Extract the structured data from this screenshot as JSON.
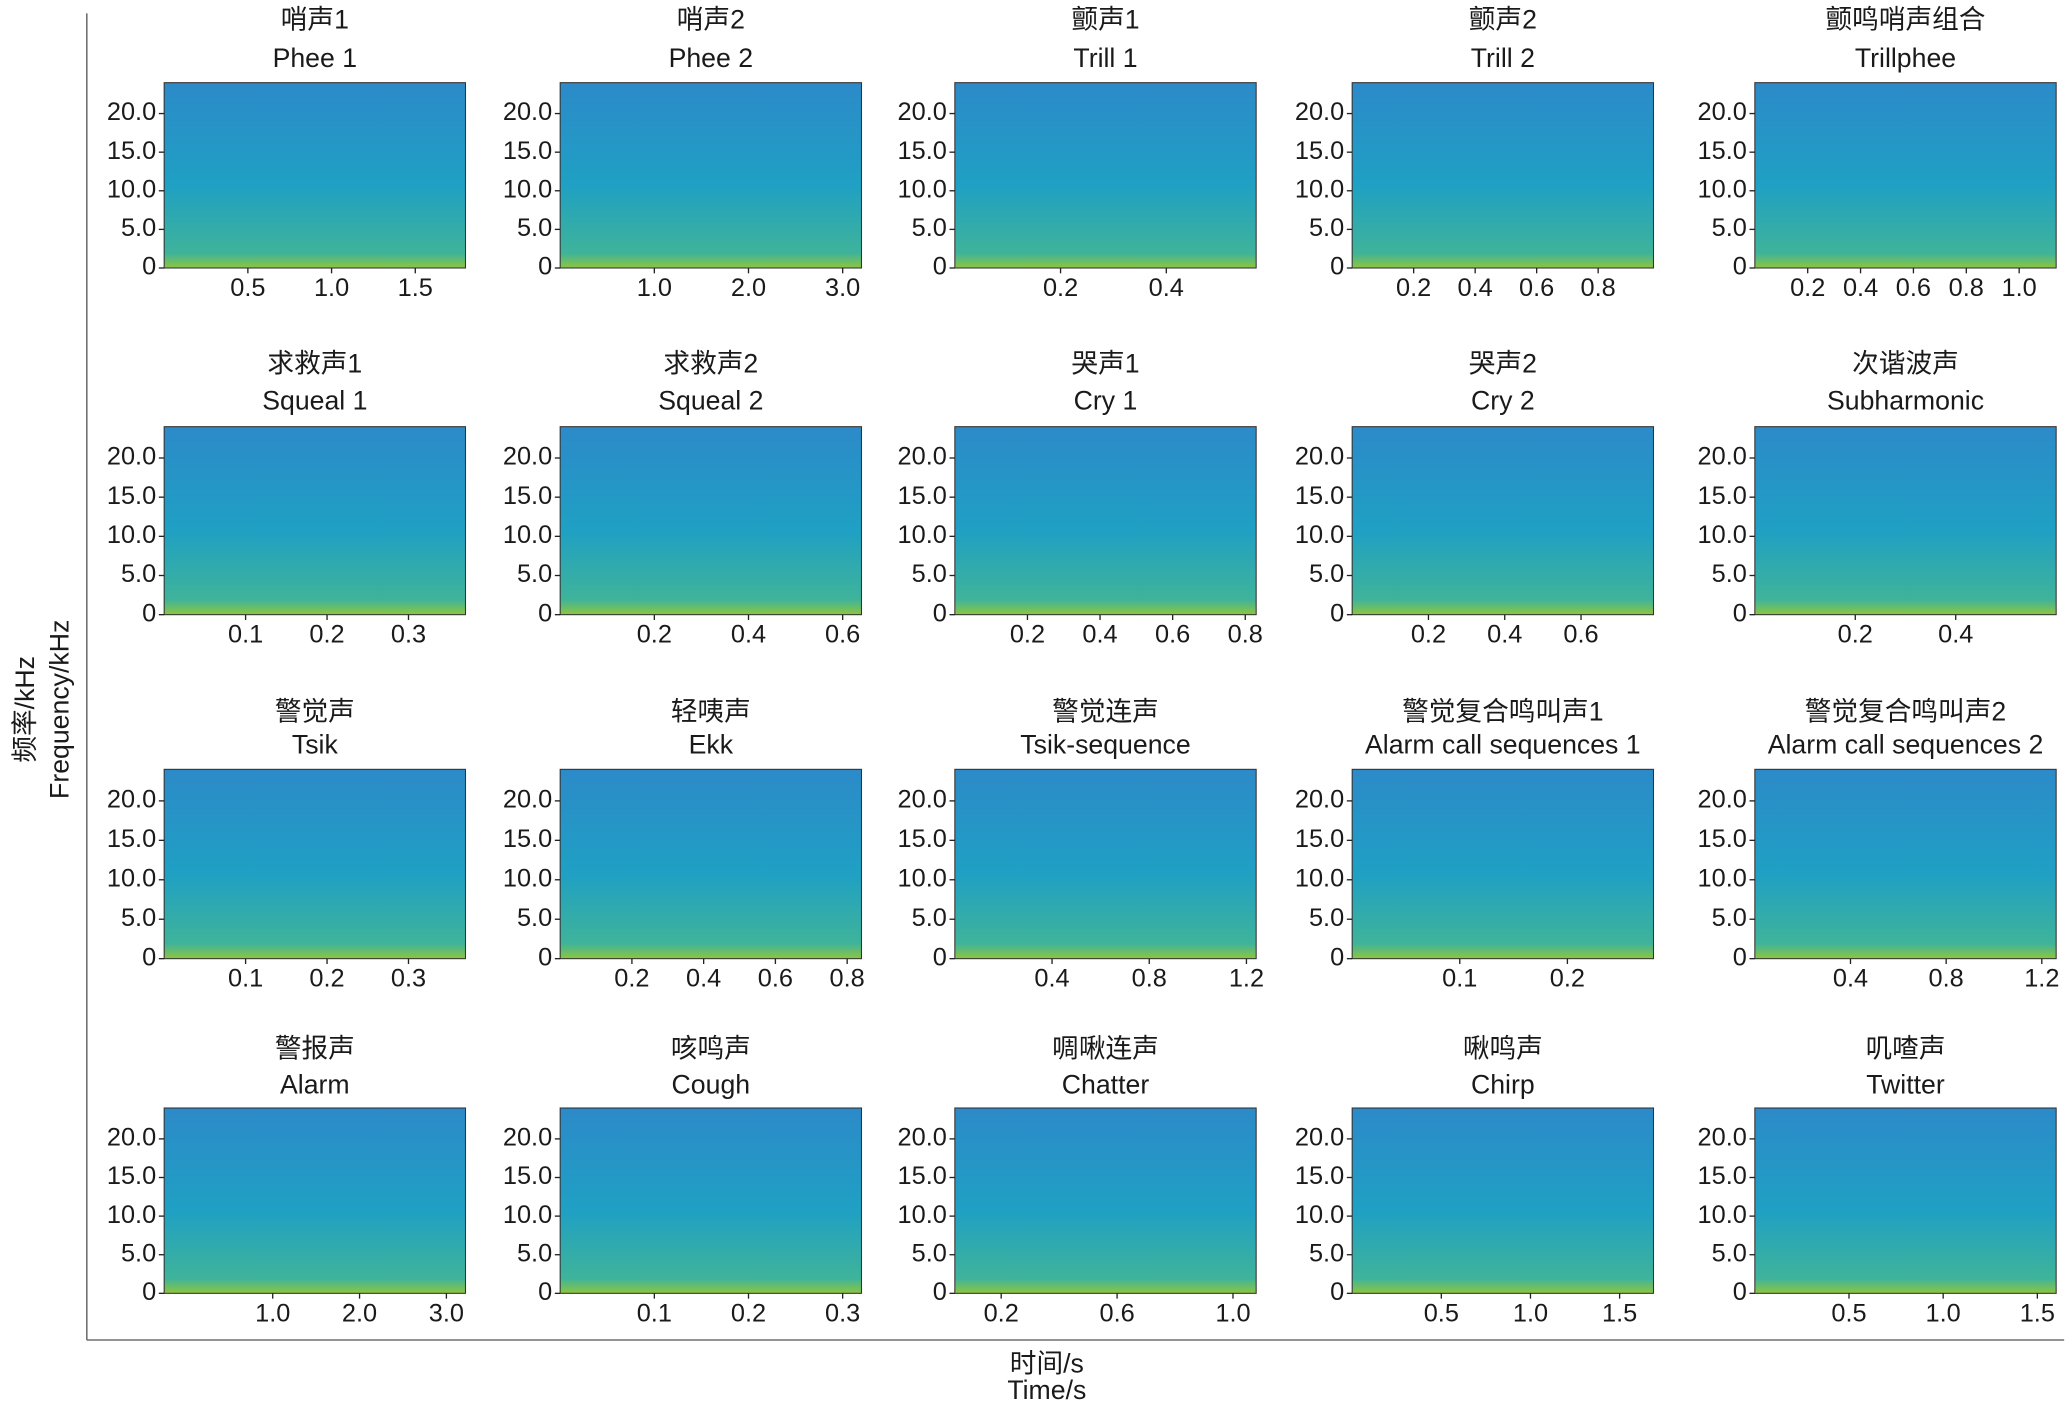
{
  "figure": {
    "xlabel": "时间/s",
    "xlabel_en": "Time/s",
    "ylabel": "频率/kHz",
    "ylabel_en": "Frequency/kHz"
  },
  "chart_data": [
    {
      "type": "spectrogram",
      "title": "哨声1",
      "subtitle": "Phee 1",
      "xlim": [
        0,
        1.8
      ],
      "xticks": [
        0.5,
        {
          "value": 1,
          "label": "1.0"
        },
        1.5
      ],
      "ylim": [
        0,
        24
      ],
      "yticks": [
        0,
        {
          "value": 5,
          "label": "5.0"
        },
        {
          "value": 10,
          "label": "10.0"
        },
        {
          "value": 15,
          "label": "15.0"
        },
        {
          "value": 20,
          "label": "20.0"
        }
      ]
    },
    {
      "type": "spectrogram",
      "title": "哨声2",
      "subtitle": "Phee 2",
      "xlim": [
        0,
        3.2
      ],
      "xticks": [
        {
          "value": 1,
          "label": "1.0"
        },
        {
          "value": 2,
          "label": "2.0"
        },
        {
          "value": 3,
          "label": "3.0"
        }
      ],
      "ylim": [
        0,
        24
      ],
      "yticks": [
        0,
        {
          "value": 5,
          "label": "5.0"
        },
        {
          "value": 10,
          "label": "10.0"
        },
        {
          "value": 15,
          "label": "15.0"
        },
        {
          "value": 20,
          "label": "20.0"
        }
      ]
    },
    {
      "type": "spectrogram",
      "title": "颤声1",
      "subtitle": "Trill 1",
      "xlim": [
        0,
        0.57
      ],
      "xticks": [
        0.2,
        0.4
      ],
      "ylim": [
        0,
        24
      ],
      "yticks": [
        0,
        {
          "value": 5,
          "label": "5.0"
        },
        {
          "value": 10,
          "label": "10.0"
        },
        {
          "value": 15,
          "label": "15.0"
        },
        {
          "value": 20,
          "label": "20.0"
        }
      ]
    },
    {
      "type": "spectrogram",
      "title": "颤声2",
      "subtitle": "Trill 2",
      "xlim": [
        0,
        0.98
      ],
      "xticks": [
        0.2,
        0.4,
        0.6,
        0.8
      ],
      "ylim": [
        0,
        24
      ],
      "yticks": [
        0,
        {
          "value": 5,
          "label": "5.0"
        },
        {
          "value": 10,
          "label": "10.0"
        },
        {
          "value": 15,
          "label": "15.0"
        },
        {
          "value": 20,
          "label": "20.0"
        }
      ]
    },
    {
      "type": "spectrogram",
      "title": "颤鸣哨声组合",
      "subtitle": "Trillphee",
      "xlim": [
        0,
        1.14
      ],
      "xticks": [
        0.2,
        0.4,
        0.6,
        0.8,
        {
          "value": 1,
          "label": "1.0"
        }
      ],
      "ylim": [
        0,
        24
      ],
      "yticks": [
        0,
        {
          "value": 5,
          "label": "5.0"
        },
        {
          "value": 10,
          "label": "10.0"
        },
        {
          "value": 15,
          "label": "15.0"
        },
        {
          "value": 20,
          "label": "20.0"
        }
      ]
    },
    {
      "type": "spectrogram",
      "title": "求救声1",
      "subtitle": "Squeal 1",
      "xlim": [
        0,
        0.37
      ],
      "xticks": [
        0.1,
        0.2,
        0.3
      ],
      "ylim": [
        0,
        24
      ],
      "yticks": [
        0,
        {
          "value": 5,
          "label": "5.0"
        },
        {
          "value": 10,
          "label": "10.0"
        },
        {
          "value": 15,
          "label": "15.0"
        },
        {
          "value": 20,
          "label": "20.0"
        }
      ]
    },
    {
      "type": "spectrogram",
      "title": "求救声2",
      "subtitle": "Squeal 2",
      "xlim": [
        0,
        0.64
      ],
      "xticks": [
        0.2,
        0.4,
        0.6
      ],
      "ylim": [
        0,
        24
      ],
      "yticks": [
        0,
        {
          "value": 5,
          "label": "5.0"
        },
        {
          "value": 10,
          "label": "10.0"
        },
        {
          "value": 15,
          "label": "15.0"
        },
        {
          "value": 20,
          "label": "20.0"
        }
      ]
    },
    {
      "type": "spectrogram",
      "title": "哭声1",
      "subtitle": "Cry 1",
      "xlim": [
        0,
        0.83
      ],
      "xticks": [
        0.2,
        0.4,
        0.6,
        0.8
      ],
      "ylim": [
        0,
        24
      ],
      "yticks": [
        0,
        {
          "value": 5,
          "label": "5.0"
        },
        {
          "value": 10,
          "label": "10.0"
        },
        {
          "value": 15,
          "label": "15.0"
        },
        {
          "value": 20,
          "label": "20.0"
        }
      ]
    },
    {
      "type": "spectrogram",
      "title": "哭声2",
      "subtitle": "Cry 2",
      "xlim": [
        0,
        0.79
      ],
      "xticks": [
        0.2,
        0.4,
        0.6
      ],
      "ylim": [
        0,
        24
      ],
      "yticks": [
        0,
        {
          "value": 5,
          "label": "5.0"
        },
        {
          "value": 10,
          "label": "10.0"
        },
        {
          "value": 15,
          "label": "15.0"
        },
        {
          "value": 20,
          "label": "20.0"
        }
      ]
    },
    {
      "type": "spectrogram",
      "title": "次谐波声",
      "subtitle": "Subharmonic",
      "xlim": [
        0,
        0.6
      ],
      "xticks": [
        0.2,
        0.4
      ],
      "ylim": [
        0,
        24
      ],
      "yticks": [
        0,
        {
          "value": 5,
          "label": "5.0"
        },
        {
          "value": 10,
          "label": "10.0"
        },
        {
          "value": 15,
          "label": "15.0"
        },
        {
          "value": 20,
          "label": "20.0"
        }
      ]
    },
    {
      "type": "spectrogram",
      "title": "警觉声",
      "subtitle": "Tsik",
      "xlim": [
        0,
        0.37
      ],
      "xticks": [
        0.1,
        0.2,
        0.3
      ],
      "ylim": [
        0,
        24
      ],
      "yticks": [
        0,
        {
          "value": 5,
          "label": "5.0"
        },
        {
          "value": 10,
          "label": "10.0"
        },
        {
          "value": 15,
          "label": "15.0"
        },
        {
          "value": 20,
          "label": "20.0"
        }
      ]
    },
    {
      "type": "spectrogram",
      "title": "轻咦声",
      "subtitle": "Ekk",
      "xlim": [
        0,
        0.84
      ],
      "xticks": [
        0.2,
        0.4,
        0.6,
        0.8
      ],
      "ylim": [
        0,
        24
      ],
      "yticks": [
        0,
        {
          "value": 5,
          "label": "5.0"
        },
        {
          "value": 10,
          "label": "10.0"
        },
        {
          "value": 15,
          "label": "15.0"
        },
        {
          "value": 20,
          "label": "20.0"
        }
      ]
    },
    {
      "type": "spectrogram",
      "title": "警觉连声",
      "subtitle": "Tsik-sequence",
      "xlim": [
        0,
        1.24
      ],
      "xticks": [
        0.4,
        0.8,
        1.2
      ],
      "ylim": [
        0,
        24
      ],
      "yticks": [
        0,
        {
          "value": 5,
          "label": "5.0"
        },
        {
          "value": 10,
          "label": "10.0"
        },
        {
          "value": 15,
          "label": "15.0"
        },
        {
          "value": 20,
          "label": "20.0"
        }
      ]
    },
    {
      "type": "spectrogram",
      "title": "警觉复合鸣叫声1",
      "subtitle": "Alarm call sequences 1",
      "xlim": [
        0,
        0.28
      ],
      "xticks": [
        0.1,
        0.2
      ],
      "ylim": [
        0,
        24
      ],
      "yticks": [
        0,
        {
          "value": 5,
          "label": "5.0"
        },
        {
          "value": 10,
          "label": "10.0"
        },
        {
          "value": 15,
          "label": "15.0"
        },
        {
          "value": 20,
          "label": "20.0"
        }
      ]
    },
    {
      "type": "spectrogram",
      "title": "警觉复合鸣叫声2",
      "subtitle": "Alarm call sequences 2",
      "xlim": [
        0,
        1.26
      ],
      "xticks": [
        0.4,
        0.8,
        1.2
      ],
      "ylim": [
        0,
        24
      ],
      "yticks": [
        0,
        {
          "value": 5,
          "label": "5.0"
        },
        {
          "value": 10,
          "label": "10.0"
        },
        {
          "value": 15,
          "label": "15.0"
        },
        {
          "value": 20,
          "label": "20.0"
        }
      ]
    },
    {
      "type": "spectrogram",
      "title": "警报声",
      "subtitle": "Alarm",
      "xlim": [
        -0.25,
        3.22
      ],
      "xticks": [
        {
          "value": 1,
          "label": "1.0"
        },
        {
          "value": 2,
          "label": "2.0"
        },
        {
          "value": 3,
          "label": "3.0"
        }
      ],
      "ylim": [
        0,
        24
      ],
      "yticks": [
        0,
        {
          "value": 5,
          "label": "5.0"
        },
        {
          "value": 10,
          "label": "10.0"
        },
        {
          "value": 15,
          "label": "15.0"
        },
        {
          "value": 20,
          "label": "20.0"
        }
      ]
    },
    {
      "type": "spectrogram",
      "title": "咳鸣声",
      "subtitle": "Cough",
      "xlim": [
        0,
        0.32
      ],
      "xticks": [
        0.1,
        0.2,
        0.3
      ],
      "ylim": [
        0,
        24
      ],
      "yticks": [
        0,
        {
          "value": 5,
          "label": "5.0"
        },
        {
          "value": 10,
          "label": "10.0"
        },
        {
          "value": 15,
          "label": "15.0"
        },
        {
          "value": 20,
          "label": "20.0"
        }
      ]
    },
    {
      "type": "spectrogram",
      "title": "啁啾连声",
      "subtitle": "Chatter",
      "xlim": [
        0.04,
        1.08
      ],
      "xticks": [
        0.2,
        0.6,
        {
          "value": 1,
          "label": "1.0"
        }
      ],
      "ylim": [
        0,
        24
      ],
      "yticks": [
        0,
        {
          "value": 5,
          "label": "5.0"
        },
        {
          "value": 10,
          "label": "10.0"
        },
        {
          "value": 15,
          "label": "15.0"
        },
        {
          "value": 20,
          "label": "20.0"
        }
      ]
    },
    {
      "type": "spectrogram",
      "title": "啾鸣声",
      "subtitle": "Chirp",
      "xlim": [
        0,
        1.69
      ],
      "xticks": [
        0.5,
        {
          "value": 1,
          "label": "1.0"
        },
        1.5
      ],
      "ylim": [
        0,
        24
      ],
      "yticks": [
        0,
        {
          "value": 5,
          "label": "5.0"
        },
        {
          "value": 10,
          "label": "10.0"
        },
        {
          "value": 15,
          "label": "15.0"
        },
        {
          "value": 20,
          "label": "20.0"
        }
      ]
    },
    {
      "type": "spectrogram",
      "title": "叽喳声",
      "subtitle": "Twitter",
      "xlim": [
        0,
        1.6
      ],
      "xticks": [
        0.5,
        {
          "value": 1,
          "label": "1.0"
        },
        1.5
      ],
      "ylim": [
        0,
        24
      ],
      "yticks": [
        0,
        {
          "value": 5,
          "label": "5.0"
        },
        {
          "value": 10,
          "label": "10.0"
        },
        {
          "value": 15,
          "label": "15.0"
        },
        {
          "value": 20,
          "label": "20.0"
        }
      ]
    }
  ]
}
